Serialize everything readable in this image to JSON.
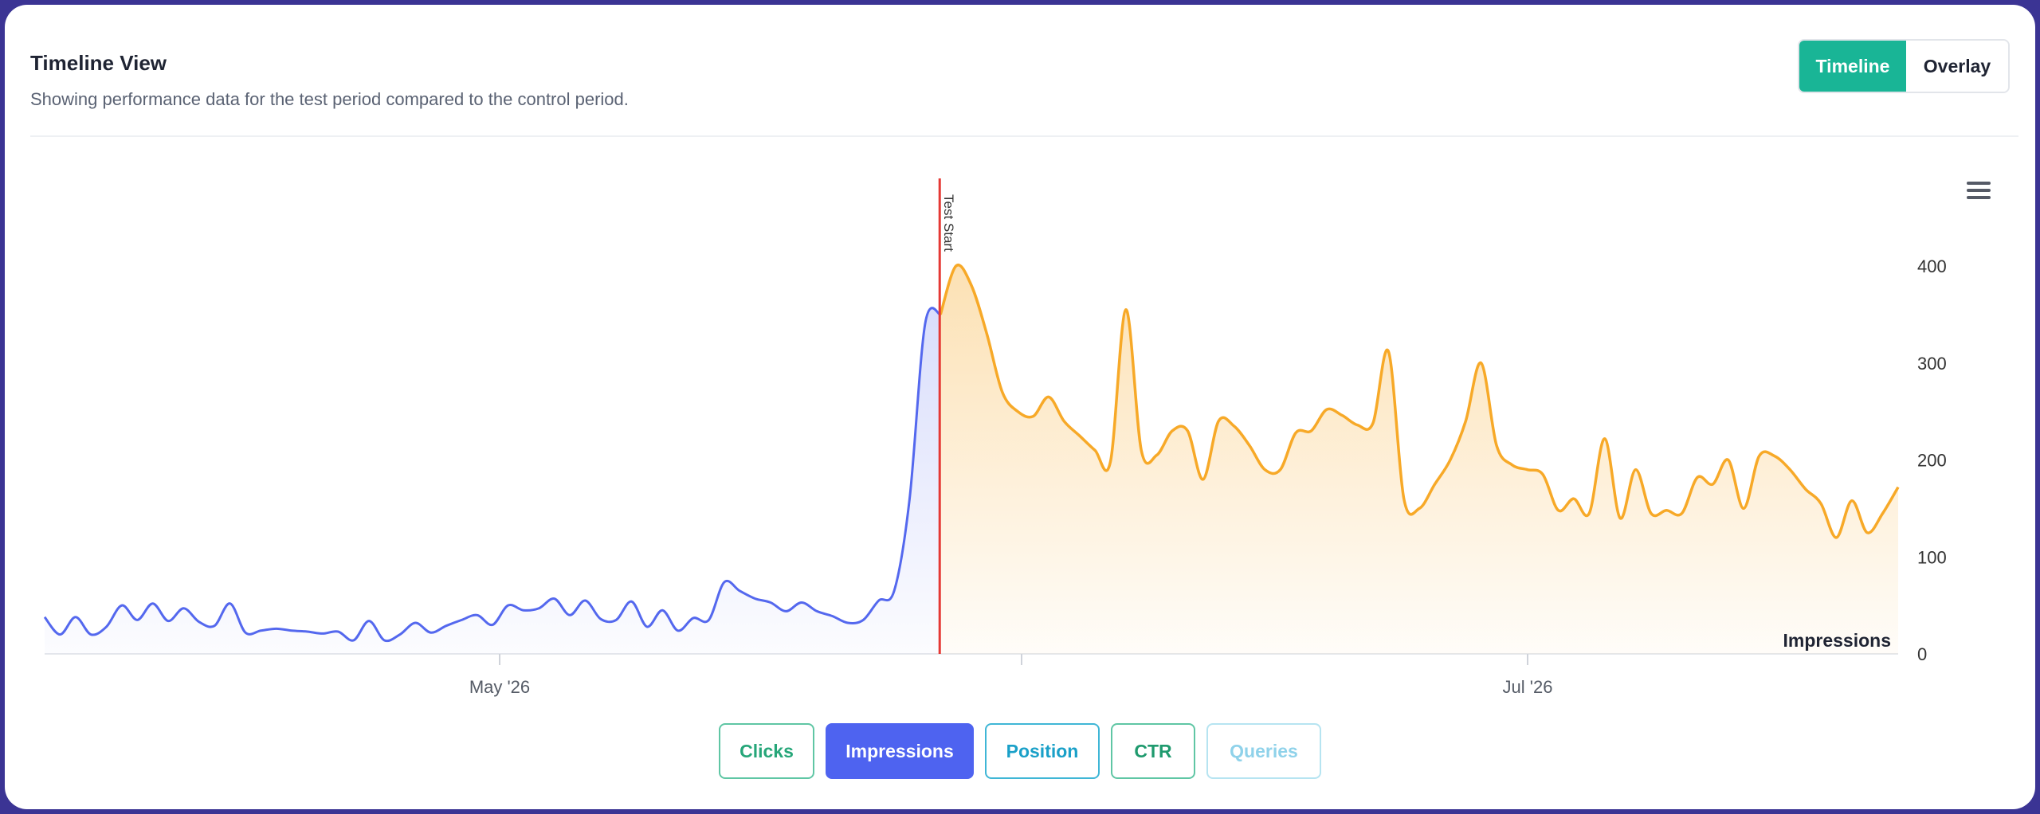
{
  "header": {
    "title": "Timeline View",
    "subtitle": "Showing performance data for the test period compared to the control period."
  },
  "view_toggle": {
    "timeline_label": "Timeline",
    "overlay_label": "Overlay",
    "active": "Timeline"
  },
  "menu": {
    "icon": "hamburger-menu-icon"
  },
  "metrics": {
    "clicks_label": "Clicks",
    "impressions_label": "Impressions",
    "position_label": "Position",
    "ctr_label": "CTR",
    "queries_label": "Queries",
    "active": "Impressions"
  },
  "colors": {
    "control_line": "#5468ee",
    "test_line": "#f7a928",
    "test_start_line": "#e53935",
    "active_metric": "#4e63f0",
    "toggle_active": "#19b596"
  },
  "chart_data": {
    "type": "line",
    "ylabel": "Impressions",
    "ylim": [
      0,
      400
    ],
    "yticks": [
      0,
      100,
      200,
      300,
      400
    ],
    "xtick_labels": [
      "May '26",
      "Jul '26"
    ],
    "annotation": "Test Start",
    "test_start_index": 69,
    "series": [
      {
        "role": "control",
        "values": [
          38,
          20,
          38,
          20,
          28,
          50,
          35,
          52,
          34,
          47,
          33,
          29,
          52,
          22,
          24,
          26,
          24,
          23,
          21,
          23,
          14,
          34,
          14,
          20,
          32,
          22,
          29,
          35,
          40,
          30,
          50,
          45,
          47,
          57,
          40,
          55,
          36,
          35,
          54,
          28,
          45,
          24,
          37,
          35,
          74,
          65,
          57,
          53,
          44,
          53,
          44,
          39,
          32,
          35,
          55,
          65,
          160,
          340
        ]
      },
      {
        "role": "test",
        "values": [
          350,
          400,
          380,
          330,
          270,
          250,
          245,
          265,
          240,
          225,
          210,
          198,
          355,
          210,
          205,
          230,
          230,
          180,
          240,
          235,
          215,
          190,
          190,
          228,
          230,
          252,
          246,
          236,
          238,
          312,
          160,
          150,
          175,
          200,
          240,
          300,
          215,
          195,
          190,
          185,
          148,
          160,
          145,
          222,
          140,
          190,
          145,
          148,
          145,
          182,
          175,
          200,
          150,
          204,
          204,
          190,
          170,
          155,
          120,
          158,
          125,
          145,
          172
        ]
      }
    ]
  }
}
